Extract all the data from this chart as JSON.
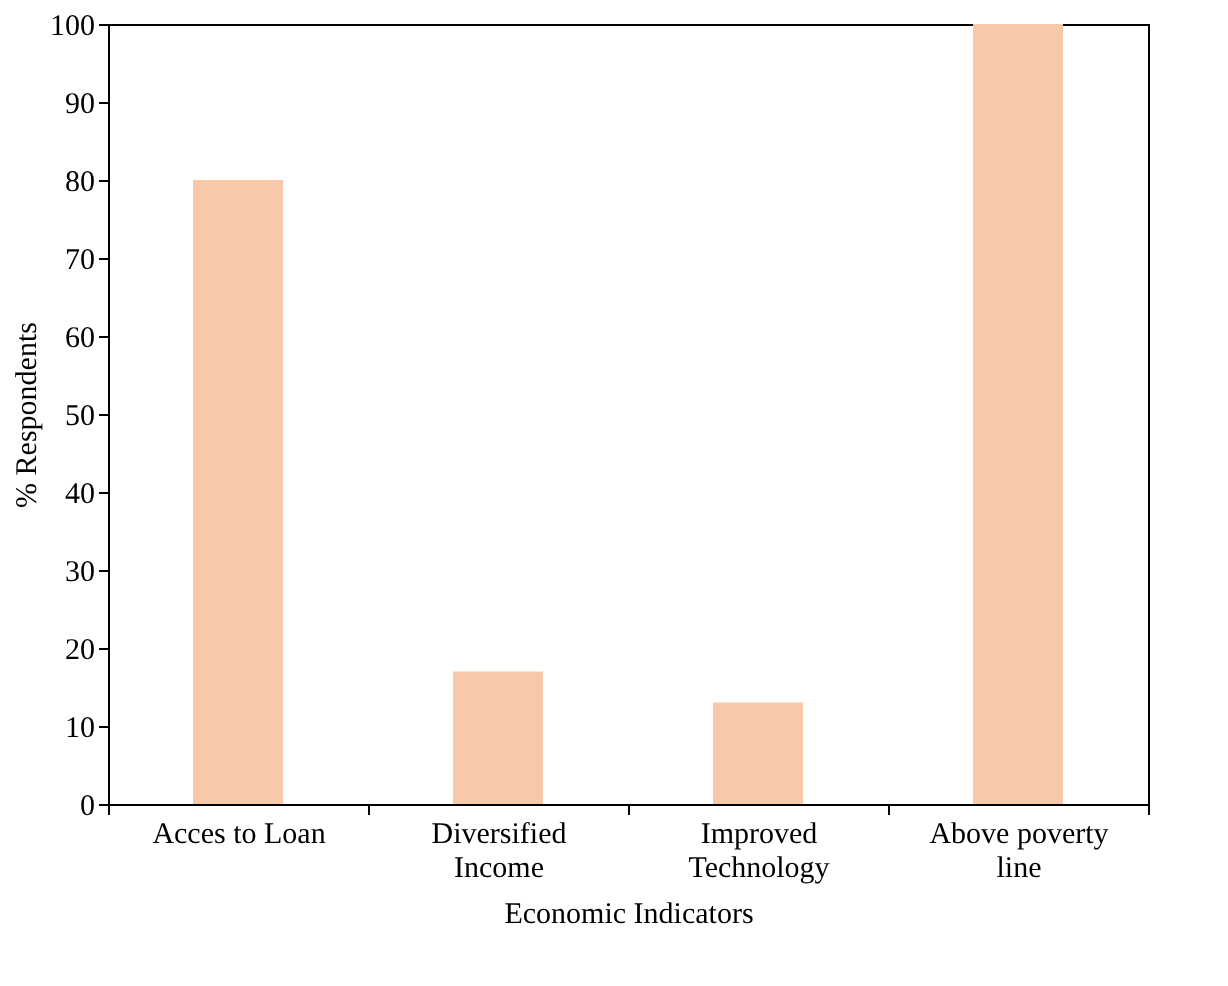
{
  "chart_data": {
    "type": "bar",
    "xlabel": "Economic Indicators",
    "ylabel": "% Respondents",
    "categories": [
      "Acces to Loan",
      "Diversified Income",
      "Improved Technology",
      "Above poverty line"
    ],
    "values": [
      80,
      17,
      13,
      100
    ],
    "color": "#f7c9a9",
    "ylim": [
      0,
      100
    ],
    "yticks": [
      0,
      10,
      20,
      30,
      40,
      50,
      60,
      70,
      80,
      90,
      100
    ],
    "grid": false
  }
}
